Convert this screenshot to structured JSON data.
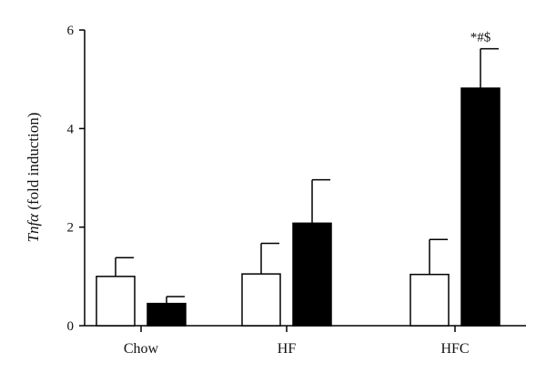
{
  "chart_data": {
    "type": "bar",
    "categories": [
      "Chow",
      "HF",
      "HFC"
    ],
    "series": [
      {
        "fill": "#ffffff",
        "values": [
          1.0,
          1.05,
          1.04
        ],
        "errors": [
          0.38,
          0.62,
          0.71
        ]
      },
      {
        "fill": "#000000",
        "values": [
          0.45,
          2.08,
          4.82
        ],
        "errors": [
          0.14,
          0.88,
          0.8
        ]
      }
    ],
    "ylabel_italic": "Tnfα",
    "ylabel_rest": " (fold induction)",
    "ylim": [
      0,
      6
    ],
    "yticks": [
      0,
      2,
      4,
      6
    ],
    "annotations": [
      {
        "category": "HFC",
        "series": 1,
        "text": "*#$"
      }
    ],
    "grid": false,
    "legend": "none"
  }
}
